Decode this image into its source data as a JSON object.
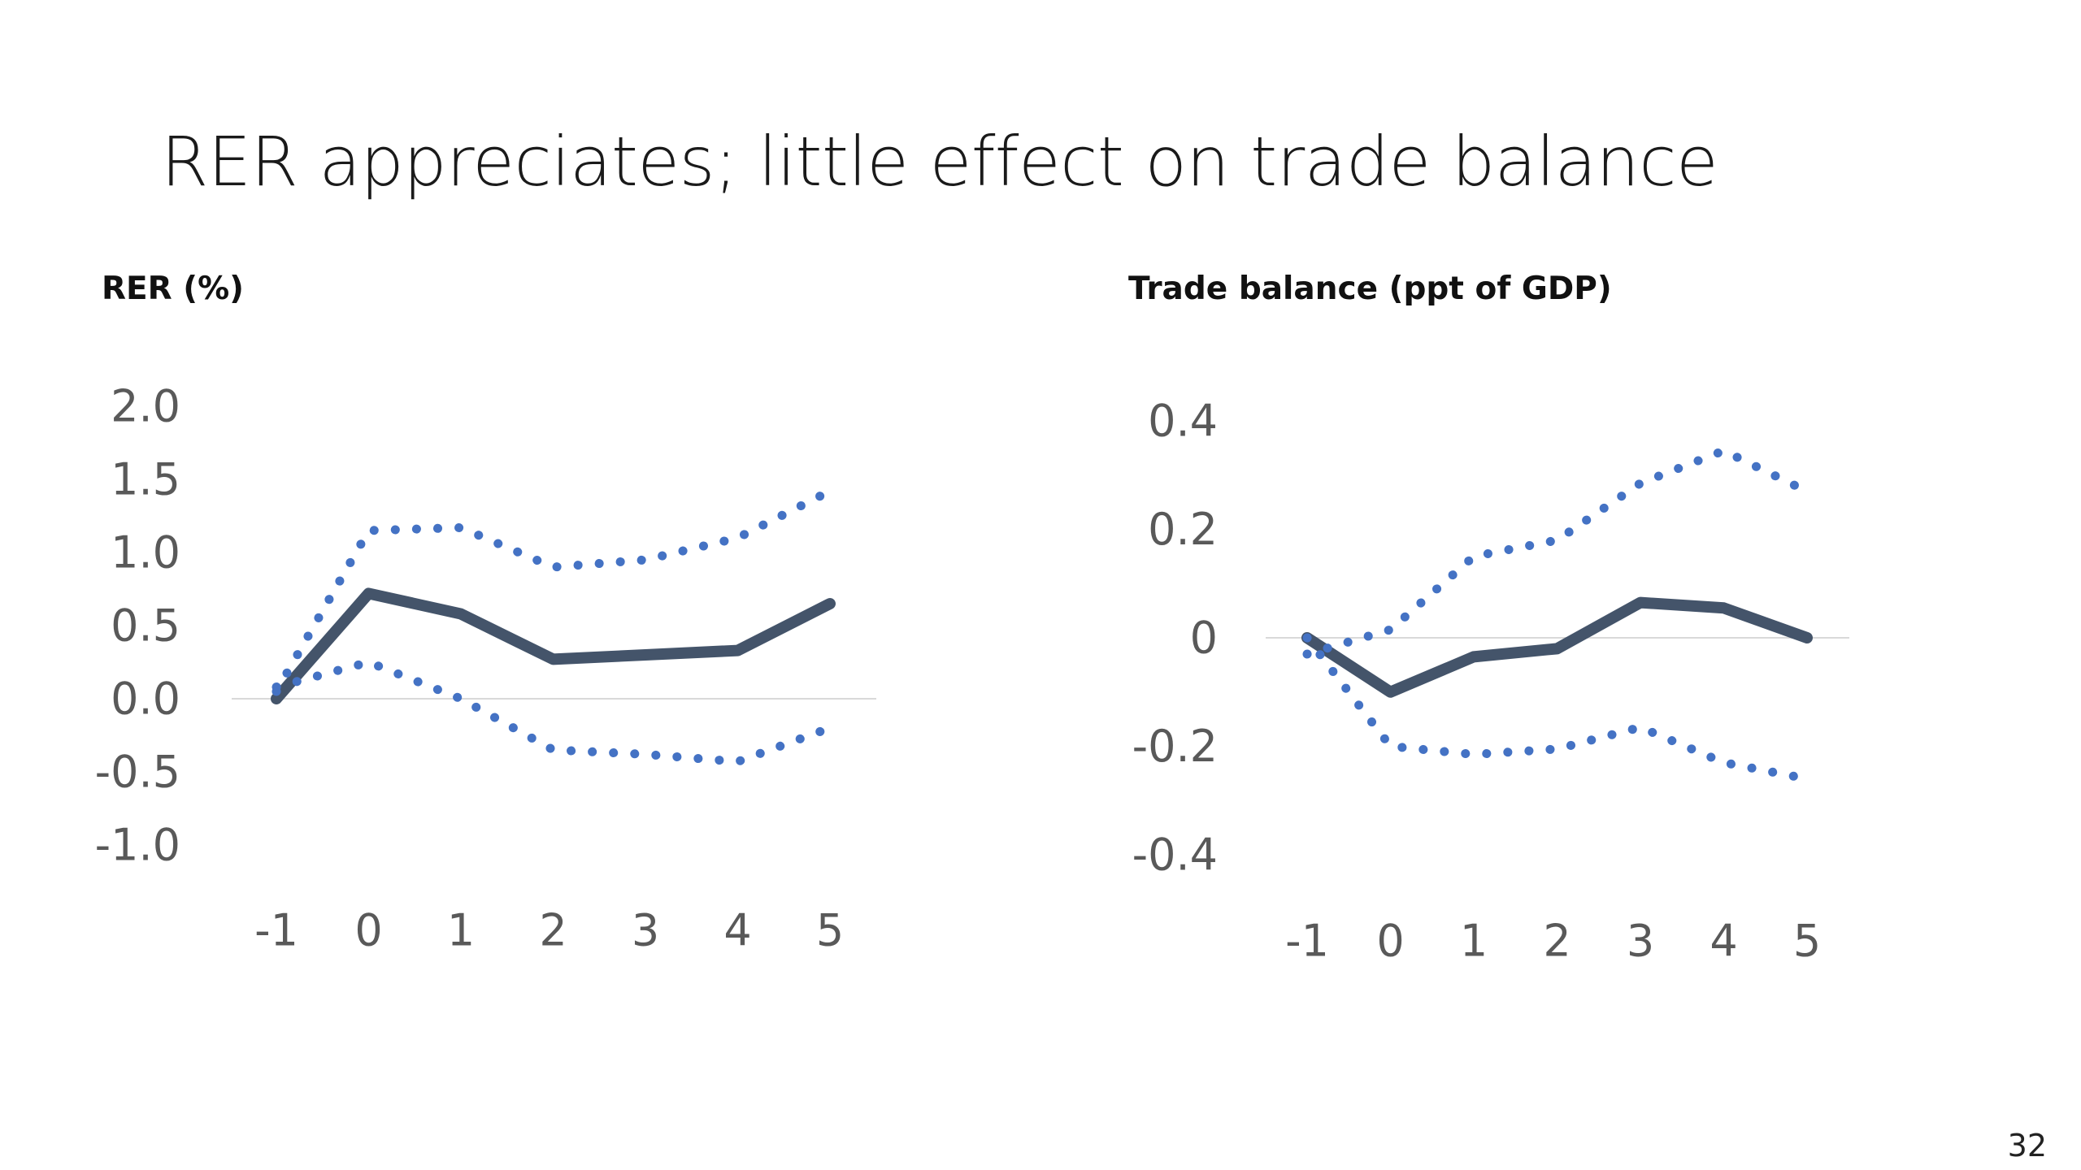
{
  "slide": {
    "title": "RER appreciates; little effect on trade balance",
    "page_number": "32"
  },
  "colors": {
    "line": "#44546a",
    "band": "#4472c4",
    "zero_line": "#d9d9d9"
  },
  "chart_data": [
    {
      "type": "line",
      "title": "RER (%)",
      "x": [
        -1,
        0,
        1,
        2,
        3,
        4,
        5
      ],
      "x_tick_labels": [
        "-1",
        "0",
        "1",
        "2",
        "3",
        "4",
        "5"
      ],
      "y_tick_labels": [
        "2.0",
        "1.5",
        "1.0",
        "0.5",
        "0.0",
        "-0.5",
        "-1.0"
      ],
      "y_ticks": [
        2.0,
        1.5,
        1.0,
        0.5,
        0.0,
        -0.5,
        -1.0
      ],
      "ylim": [
        -1.0,
        2.0
      ],
      "grid": false,
      "series": [
        {
          "style": "solid",
          "values": [
            0.0,
            0.72,
            0.58,
            0.27,
            0.3,
            0.33,
            0.65
          ]
        },
        {
          "style": "dotted",
          "values": [
            0.05,
            1.15,
            1.17,
            0.9,
            0.95,
            1.1,
            1.42
          ]
        },
        {
          "style": "dotted",
          "values": [
            0.08,
            0.25,
            0.0,
            -0.35,
            -0.38,
            -0.43,
            -0.2
          ]
        }
      ]
    },
    {
      "type": "line",
      "title": "Trade balance (ppt of GDP)",
      "x": [
        -1,
        0,
        1,
        2,
        3,
        4,
        5
      ],
      "x_tick_labels": [
        "-1",
        "0",
        "1",
        "2",
        "3",
        "4",
        "5"
      ],
      "y_tick_labels": [
        "0.4",
        "0.2",
        "0",
        "-0.2",
        "-0.4"
      ],
      "y_ticks": [
        0.4,
        0.2,
        0.0,
        -0.2,
        -0.4
      ],
      "ylim": [
        -0.4,
        0.4
      ],
      "grid": false,
      "series": [
        {
          "style": "solid",
          "values": [
            0.0,
            -0.1,
            -0.035,
            -0.02,
            0.065,
            0.055,
            0.0
          ]
        },
        {
          "style": "dotted",
          "values": [
            -0.03,
            0.015,
            0.15,
            0.18,
            0.285,
            0.345,
            0.27
          ]
        },
        {
          "style": "dotted",
          "values": [
            0.0,
            -0.2,
            -0.215,
            -0.205,
            -0.165,
            -0.23,
            -0.26
          ]
        }
      ]
    }
  ]
}
